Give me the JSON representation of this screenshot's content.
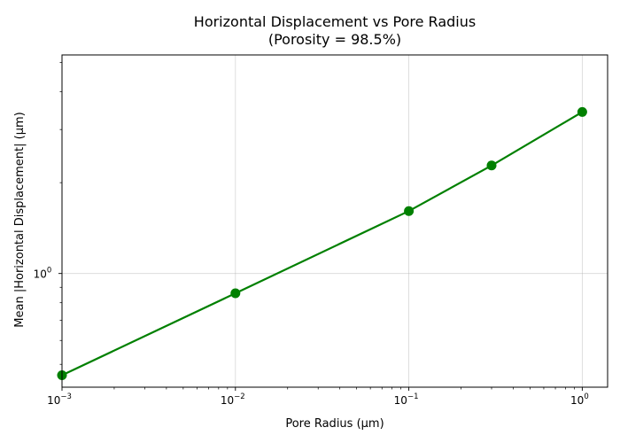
{
  "chart_data": {
    "type": "line",
    "title": "Horizontal Displacement vs Pore Radius",
    "subtitle": "(Porosity = 98.5%)",
    "xlabel": "Pore Radius (µm)",
    "ylabel": "Mean |Horizontal Displacement| (µm)",
    "x_scale": "log",
    "y_scale": "log",
    "xlim": [
      0.001,
      1.4
    ],
    "ylim": [
      0.42,
      5.3
    ],
    "x_ticks": [
      {
        "value": 0.001,
        "base": "10",
        "exp": "−3"
      },
      {
        "value": 0.01,
        "base": "10",
        "exp": "−2"
      },
      {
        "value": 0.1,
        "base": "10",
        "exp": "−1"
      },
      {
        "value": 1,
        "base": "10",
        "exp": "0"
      }
    ],
    "y_ticks": [
      {
        "value": 1,
        "base": "10",
        "exp": "0"
      }
    ],
    "grid": true,
    "series": [
      {
        "color": "#008000",
        "marker": "circle",
        "x": [
          0.001,
          0.01,
          0.1,
          0.3,
          1.0
        ],
        "y": [
          0.46,
          0.86,
          1.61,
          2.28,
          3.43
        ]
      }
    ]
  }
}
